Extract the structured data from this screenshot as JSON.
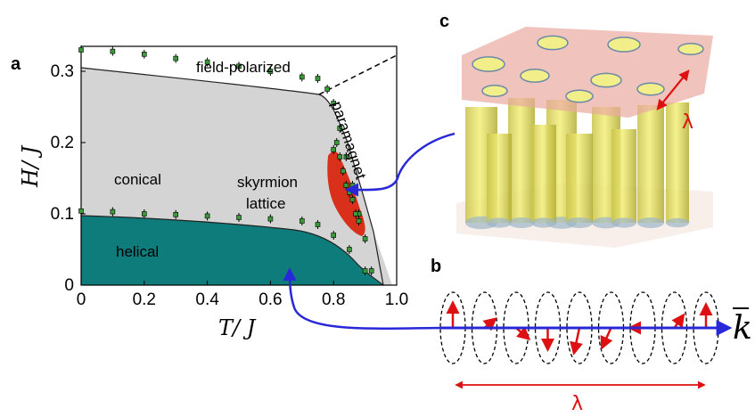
{
  "panels": {
    "a": "a",
    "b": "b",
    "c": "c"
  },
  "phase_diagram": {
    "xlabel": "T/ J",
    "ylabel": "H/ J",
    "x_ticks": [
      "0",
      "0.2",
      "0.4",
      "0.6",
      "0.8",
      "1.0"
    ],
    "y_ticks": [
      "0",
      "0.1",
      "0.2",
      "0.3"
    ],
    "regions": {
      "field_polarized": "field-polarized",
      "paramagnet": "paramagnet",
      "conical": "conical",
      "skyrmion_1": "skyrmion",
      "skyrmion_2": "lattice",
      "helical": "helical"
    },
    "colors": {
      "conical": "#d4d4d4",
      "helical": "#0f7c7c",
      "skyrmion": "#d8301a",
      "marker": "#3a9a3a",
      "arrow": "#2828d8"
    }
  },
  "chart_data": {
    "type": "scatter",
    "xlim": [
      0,
      1.0
    ],
    "ylim": [
      0,
      0.335
    ],
    "series": [
      {
        "x": [
          0,
          0.1,
          0.2,
          0.3,
          0.4,
          0.5,
          0.6,
          0.7,
          0.75,
          0.78,
          0.8,
          0.82,
          0.84,
          0.86,
          0.88,
          0.9,
          0.92
        ],
        "y": [
          0.33,
          0.328,
          0.324,
          0.318,
          0.313,
          0.307,
          0.3,
          0.292,
          0.29,
          0.275,
          0.255,
          0.22,
          0.18,
          0.14,
          0.1,
          0.065,
          0.02
        ]
      },
      {
        "x": [
          0,
          0.1,
          0.2,
          0.3,
          0.4,
          0.5,
          0.6,
          0.7,
          0.75,
          0.8,
          0.85,
          0.9
        ],
        "y": [
          0.104,
          0.103,
          0.1,
          0.099,
          0.097,
          0.095,
          0.093,
          0.09,
          0.085,
          0.07,
          0.05,
          0.02
        ]
      },
      {
        "x": [
          0.8,
          0.81,
          0.82,
          0.83,
          0.84,
          0.85,
          0.86,
          0.87,
          0.88
        ],
        "y": [
          0.19,
          0.2,
          0.18,
          0.16,
          0.14,
          0.13,
          0.12,
          0.1,
          0.09
        ]
      }
    ]
  },
  "helix": {
    "lambda": "λ",
    "k": "k"
  },
  "skyrmion_3d": {
    "lambda": "λ"
  }
}
